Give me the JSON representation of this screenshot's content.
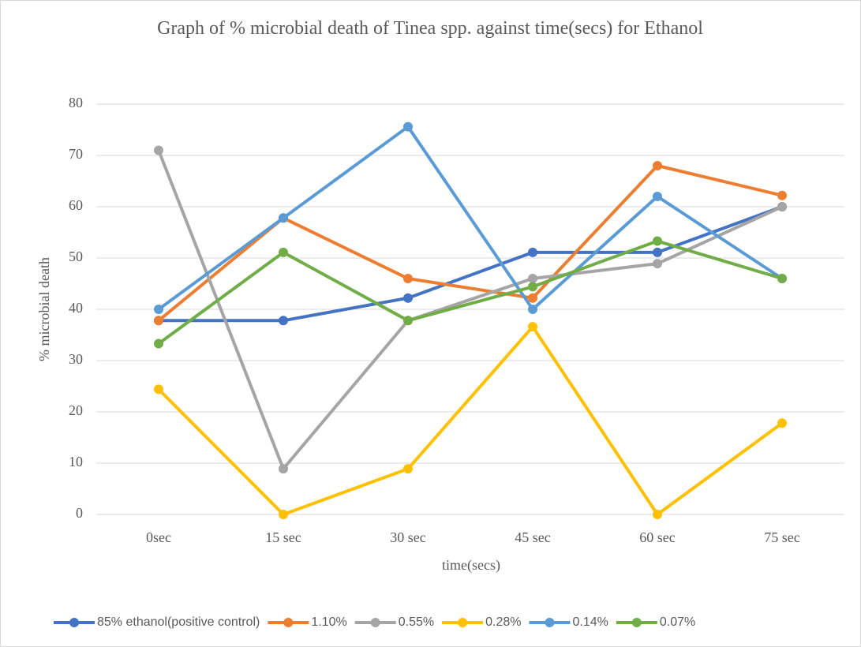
{
  "chart_data": {
    "type": "line",
    "title": "Graph of % microbial death of Tinea spp. against time(secs) for Ethanol",
    "x_label": "time(secs)",
    "y_label": "% microbial death",
    "categories": [
      "0sec",
      "15 sec",
      "30 sec",
      "45 sec",
      "60 sec",
      "75 sec"
    ],
    "ylim": [
      0,
      80
    ],
    "yticks": [
      0,
      10,
      20,
      30,
      40,
      50,
      60,
      70,
      80
    ],
    "grid": true,
    "legend": "bottom",
    "series": [
      {
        "name": "85% ethanol(positive control)",
        "color": "#4472c4",
        "values": [
          37.8,
          37.8,
          42.2,
          51.1,
          51.1,
          60
        ]
      },
      {
        "name": "1.10%",
        "color": "#ed7d31",
        "values": [
          37.8,
          57.8,
          46,
          42.2,
          68,
          62.2
        ]
      },
      {
        "name": "0.55%",
        "color": "#a5a5a5",
        "values": [
          71,
          8.9,
          37.8,
          46,
          48.9,
          60
        ]
      },
      {
        "name": "0.28%",
        "color": "#ffc000",
        "values": [
          24.4,
          0,
          8.9,
          36.6,
          0,
          17.8
        ]
      },
      {
        "name": "0.14%",
        "color": "#5b9bd5",
        "values": [
          40,
          57.8,
          75.6,
          40,
          62,
          46
        ]
      },
      {
        "name": "0.07%",
        "color": "#70ad47",
        "values": [
          33.3,
          51.1,
          37.8,
          44.4,
          53.3,
          46
        ]
      }
    ]
  }
}
